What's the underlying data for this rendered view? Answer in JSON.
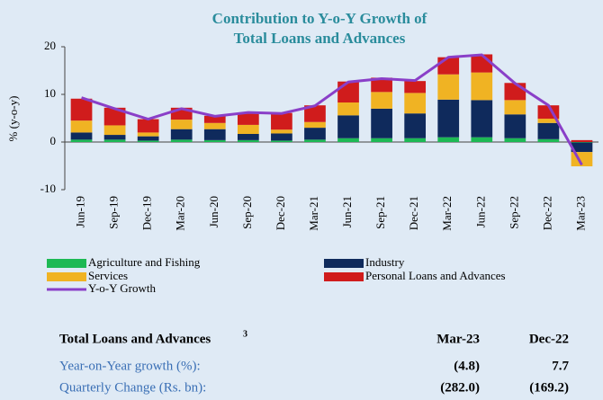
{
  "chart_data": {
    "type": "stacked_bar_line",
    "title": [
      "Contribution to Y-o-Y Growth of",
      "Total Loans and Advances"
    ],
    "y_label": "% (y-o-y)",
    "categories": [
      "Jun-19",
      "Sep-19",
      "Dec-19",
      "Mar-20",
      "Jun-20",
      "Sep-20",
      "Dec-20",
      "Mar-21",
      "Jun-21",
      "Sep-21",
      "Dec-21",
      "Mar-22",
      "Jun-22",
      "Sep-22",
      "Dec-22",
      "Mar-23"
    ],
    "series": [
      {
        "name": "Agriculture and Fishing",
        "color": "#1db954",
        "values": [
          0.5,
          0.5,
          0.3,
          0.5,
          0.4,
          0.4,
          0.3,
          0.5,
          0.8,
          0.8,
          0.8,
          1.0,
          1.0,
          0.8,
          0.6,
          -0.1
        ]
      },
      {
        "name": "Industry",
        "color": "#0f2a5c",
        "values": [
          1.5,
          1.0,
          0.9,
          2.2,
          2.3,
          1.3,
          1.5,
          2.5,
          4.8,
          6.2,
          5.2,
          7.9,
          7.8,
          5.0,
          3.4,
          -2.0
        ]
      },
      {
        "name": "Services",
        "color": "#f0b323",
        "values": [
          2.5,
          2.0,
          0.8,
          2.0,
          1.3,
          1.9,
          0.8,
          1.2,
          2.7,
          3.5,
          4.3,
          5.3,
          5.8,
          3.0,
          0.9,
          -3.0
        ]
      },
      {
        "name": "Personal Loans and Advances",
        "color": "#d01c1c",
        "values": [
          4.6,
          3.7,
          2.8,
          2.5,
          1.5,
          2.5,
          3.5,
          3.5,
          4.4,
          3.0,
          2.5,
          3.6,
          3.8,
          3.6,
          2.8,
          0.4
        ]
      },
      {
        "name": "Y-o-Y Growth",
        "color": "#8a3fc8",
        "kind": "line",
        "values": [
          9.3,
          7.0,
          4.8,
          7.0,
          5.4,
          6.2,
          6.0,
          7.6,
          12.6,
          13.3,
          12.9,
          17.8,
          18.3,
          12.3,
          7.7,
          -4.8
        ]
      }
    ],
    "ylim": [
      -10,
      20
    ],
    "yticks": [
      -10,
      0,
      10,
      20
    ]
  },
  "table": {
    "header": [
      "Total Loans and Advances",
      "Mar-23",
      "Dec-22"
    ],
    "footnote": "3",
    "rows": [
      [
        "Year-on-Year growth (%):",
        "(4.8)",
        "7.7"
      ],
      [
        "Quarterly Change (Rs. bn):",
        "(282.0)",
        "(169.2)"
      ]
    ]
  }
}
